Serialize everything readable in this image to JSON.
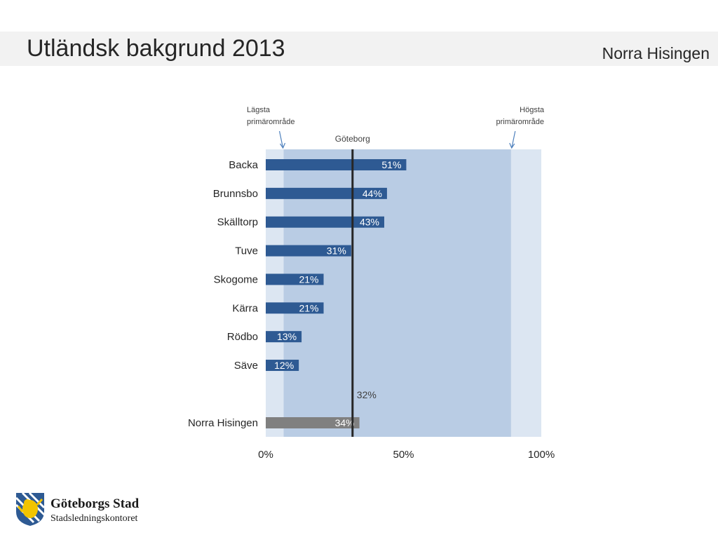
{
  "header": {
    "title": "Utländsk bakgrund 2013",
    "subtitle": "Norra Hisingen"
  },
  "chart_data": {
    "type": "bar",
    "orientation": "horizontal",
    "xlim": [
      0,
      100
    ],
    "x_ticks": [
      "0%",
      "50%",
      "100%"
    ],
    "x_tick_values": [
      0,
      50,
      100
    ],
    "categories": [
      "Backa",
      "Brunnsbo",
      "Skälltorp",
      "Tuve",
      "Skogome",
      "Kärra",
      "Rödbo",
      "Säve"
    ],
    "values": [
      51,
      44,
      43,
      31,
      21,
      21,
      13,
      12
    ],
    "value_labels": [
      "51%",
      "44%",
      "43%",
      "31%",
      "21%",
      "21%",
      "13%",
      "12%"
    ],
    "summary": {
      "category": "Norra Hisingen",
      "value": 34,
      "label": "34%"
    },
    "reference_line": {
      "name": "Göteborg",
      "value": 31.5,
      "label": "32%"
    },
    "range_band": {
      "low": 6.5,
      "high": 89,
      "low_label": [
        "Lägsta",
        "primärområde"
      ],
      "high_label": [
        "Högsta",
        "primärområde"
      ]
    },
    "colors": {
      "bar": "#2e5a93",
      "summary_bar": "#808080",
      "band_range": "#b9cce4",
      "band_full": "#dce6f2",
      "reference_line": "#262626",
      "arrow": "#4f81bd"
    },
    "grid": false
  },
  "logo": {
    "name": "Göteborgs Stad",
    "department": "Stadsledningskontoret"
  }
}
